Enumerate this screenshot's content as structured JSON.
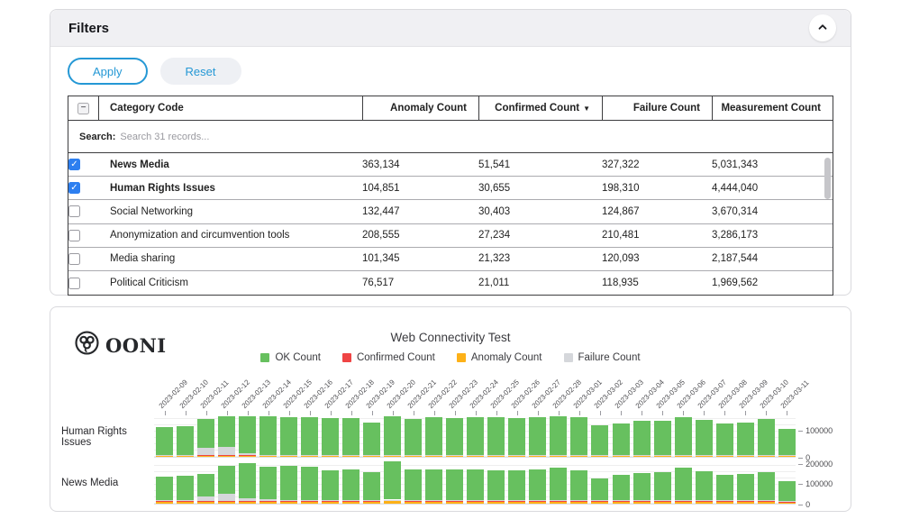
{
  "brand": {
    "logo_text": "OONI"
  },
  "colors": {
    "accent_blue": "#2598d5",
    "checkbox_blue": "#2d7ff0",
    "ok_green": "#67c05f",
    "confirmed_red": "#ef4444",
    "anomaly_orange": "#fdb118",
    "failure_gray": "#d5d7db"
  },
  "icons": {
    "collapse": "chevron-up",
    "sort_desc": "▼",
    "check": "✓",
    "indeterminate": "−"
  },
  "filters": {
    "title": "Filters",
    "apply_label": "Apply",
    "reset_label": "Reset",
    "search_label": "Search:",
    "search_placeholder": "Search 31 records...",
    "table": {
      "select_all_state": "indeterminate",
      "columns": [
        "Category Code",
        "Anomaly Count",
        "Confirmed Count",
        "Failure Count",
        "Measurement Count"
      ],
      "sort_column": "Confirmed Count",
      "sort_direction": "desc",
      "rows": [
        {
          "checked": true,
          "name": "News Media",
          "values": [
            "363,134",
            "51,541",
            "327,322",
            "5,031,343"
          ]
        },
        {
          "checked": true,
          "name": "Human Rights Issues",
          "values": [
            "104,851",
            "30,655",
            "198,310",
            "4,444,040"
          ]
        },
        {
          "checked": false,
          "name": "Social Networking",
          "values": [
            "132,447",
            "30,403",
            "124,867",
            "3,670,314"
          ]
        },
        {
          "checked": false,
          "name": "Anonymization and circumvention tools",
          "values": [
            "208,555",
            "27,234",
            "210,481",
            "3,286,173"
          ]
        },
        {
          "checked": false,
          "name": "Media sharing",
          "values": [
            "101,345",
            "21,323",
            "120,093",
            "2,187,544"
          ]
        },
        {
          "checked": false,
          "name": "Political Criticism",
          "values": [
            "76,517",
            "21,011",
            "118,935",
            "1,969,562"
          ]
        }
      ]
    }
  },
  "chart_data": {
    "type": "bar",
    "variant": "stacked-small-multiples",
    "title": "Web Connectivity Test",
    "legend": [
      {
        "label": "OK Count",
        "color": "#67c05f"
      },
      {
        "label": "Confirmed Count",
        "color": "#ef4444"
      },
      {
        "label": "Anomaly Count",
        "color": "#fdb118"
      },
      {
        "label": "Failure Count",
        "color": "#d5d7db"
      }
    ],
    "stack_order": [
      "anomaly",
      "confirmed",
      "failure",
      "ok"
    ],
    "x": [
      "2023-02-09",
      "2023-02-10",
      "2023-02-11",
      "2023-02-12",
      "2023-02-13",
      "2023-02-14",
      "2023-02-15",
      "2023-02-16",
      "2023-02-17",
      "2023-02-18",
      "2023-02-19",
      "2023-02-20",
      "2023-02-21",
      "2023-02-22",
      "2023-02-23",
      "2023-02-24",
      "2023-02-25",
      "2023-02-26",
      "2023-02-27",
      "2023-02-28",
      "2023-03-01",
      "2023-03-02",
      "2023-03-03",
      "2023-03-04",
      "2023-03-05",
      "2023-03-06",
      "2023-03-07",
      "2023-03-08",
      "2023-03-09",
      "2023-03-10",
      "2023-03-11"
    ],
    "rows": [
      {
        "label": "Human Rights Issues",
        "ylim": [
          0,
          152000
        ],
        "yticks": [
          {
            "value": 100000,
            "label": "100000"
          },
          {
            "value": 0,
            "label": "0"
          }
        ],
        "ok": [
          100000,
          104000,
          105000,
          112000,
          140000,
          143000,
          138000,
          139000,
          133000,
          135000,
          118000,
          145000,
          130000,
          136000,
          133000,
          136000,
          136000,
          133000,
          137000,
          140000,
          136000,
          108000,
          114000,
          123000,
          125000,
          137000,
          129000,
          114000,
          118000,
          130000,
          95000
        ],
        "confirmed": [
          2000,
          2500,
          1500,
          1500,
          3000,
          2000,
          2000,
          2000,
          2000,
          2000,
          2000,
          2000,
          2000,
          2000,
          2000,
          2000,
          2000,
          2000,
          2000,
          2000,
          2000,
          2000,
          1500,
          1500,
          1500,
          2000,
          2000,
          1500,
          1500,
          2000,
          2000
        ],
        "anomaly": [
          2500,
          3000,
          2000,
          2000,
          2500,
          2500,
          2500,
          2500,
          2500,
          2500,
          2500,
          2500,
          2500,
          2500,
          2500,
          2500,
          2500,
          2500,
          2500,
          2500,
          2500,
          2000,
          2500,
          2500,
          2500,
          2500,
          2500,
          2000,
          2500,
          2500,
          2500
        ],
        "failure": [
          1500,
          1500,
          28000,
          30000,
          6000,
          1500,
          1500,
          1500,
          1500,
          1500,
          1500,
          1500,
          1500,
          1500,
          1500,
          1500,
          1500,
          1500,
          1500,
          1500,
          1500,
          2500,
          1500,
          1500,
          1500,
          1500,
          1500,
          1500,
          1500,
          2500,
          1500
        ]
      },
      {
        "label": "News Media",
        "ylim": [
          0,
          212000
        ],
        "yticks": [
          {
            "value": 200000,
            "label": "200000"
          },
          {
            "value": 100000,
            "label": "100000"
          },
          {
            "value": 0,
            "label": "0"
          }
        ],
        "ok": [
          118000,
          122000,
          112000,
          138000,
          170000,
          160000,
          170000,
          165000,
          148000,
          150000,
          138000,
          188000,
          152000,
          150000,
          152000,
          150000,
          146000,
          146000,
          152000,
          158000,
          148000,
          108000,
          125000,
          135000,
          137000,
          160000,
          142000,
          125000,
          128000,
          138000,
          98000
        ],
        "confirmed": [
          3000,
          3000,
          3500,
          3000,
          4000,
          3500,
          3000,
          3000,
          3500,
          3000,
          3000,
          4000,
          3000,
          3000,
          3000,
          3000,
          3000,
          3000,
          3500,
          3500,
          3000,
          3000,
          3000,
          3000,
          3000,
          3500,
          3000,
          3000,
          3000,
          3500,
          3000
        ],
        "anomaly": [
          9000,
          9000,
          8000,
          10000,
          11000,
          10000,
          10000,
          10000,
          10000,
          10000,
          9000,
          12000,
          10000,
          10000,
          10000,
          10000,
          10000,
          10000,
          10000,
          11000,
          10000,
          8000,
          9000,
          9000,
          9000,
          10000,
          10000,
          9000,
          9000,
          10000,
          7000
        ],
        "failure": [
          4000,
          4000,
          22000,
          35000,
          12000,
          8000,
          4000,
          4000,
          4000,
          4000,
          5000,
          4000,
          4000,
          4000,
          4000,
          4000,
          4000,
          4000,
          4000,
          4000,
          4000,
          5000,
          4000,
          4000,
          4000,
          4000,
          4000,
          4000,
          4000,
          4000,
          4000
        ]
      }
    ]
  }
}
